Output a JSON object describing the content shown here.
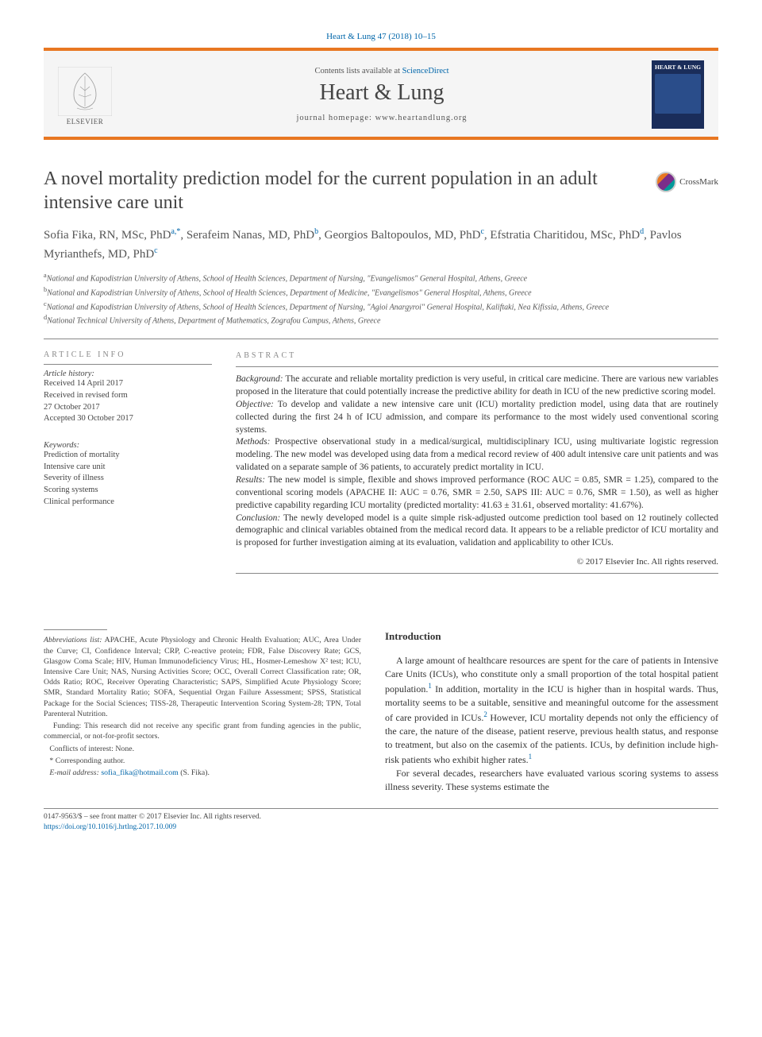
{
  "citation": "Heart & Lung 47 (2018) 10–15",
  "header": {
    "contents_text": "Contents lists available at ",
    "contents_link": "ScienceDirect",
    "journal_name": "Heart & Lung",
    "homepage_label": "journal homepage: ",
    "homepage_url": "www.heartandlung.org",
    "elsevier_label": "ELSEVIER",
    "cover_title": "HEART & LUNG"
  },
  "colors": {
    "accent_orange": "#e87722",
    "link_blue": "#0066aa",
    "cover_bg": "#1a2d5a",
    "rule_gray": "#888888",
    "header_bg": "#f5f5f5",
    "text_body": "#333333",
    "text_muted": "#555555"
  },
  "article": {
    "title": "A novel mortality prediction model for the current population in an adult intensive care unit",
    "crossmark": "CrossMark",
    "authors_html": "Sofia Fika, RN, MSc, PhD",
    "authors": [
      {
        "name": "Sofia Fika, RN, MSc, PhD",
        "marks": "a,*"
      },
      {
        "name": "Serafeim Nanas, MD, PhD",
        "marks": "b"
      },
      {
        "name": "Georgios Baltopoulos, MD, PhD",
        "marks": "c"
      },
      {
        "name": "Efstratia Charitidou, MSc, PhD",
        "marks": "d"
      },
      {
        "name": "Pavlos Myrianthefs, MD, PhD",
        "marks": "c"
      }
    ],
    "affiliations": [
      {
        "mark": "a",
        "text": "National and Kapodistrian University of Athens, School of Health Sciences, Department of Nursing, \"Evangelismos\" General Hospital, Athens, Greece"
      },
      {
        "mark": "b",
        "text": "National and Kapodistrian University of Athens, School of Health Sciences, Department of Medicine, \"Evangelismos\" General Hospital, Athens, Greece"
      },
      {
        "mark": "c",
        "text": "National and Kapodistrian University of Athens, School of Health Sciences, Department of Nursing, \"Agioi Anargyroi\" General Hospital, Kaliftaki, Nea Kifissia, Athens, Greece"
      },
      {
        "mark": "d",
        "text": "National Technical University of Athens, Department of Mathematics, Zografou Campus, Athens, Greece"
      }
    ]
  },
  "article_info": {
    "label": "ARTICLE INFO",
    "history_label": "Article history:",
    "history": [
      "Received 14 April 2017",
      "Received in revised form",
      "27 October 2017",
      "Accepted 30 October 2017"
    ],
    "keywords_label": "Keywords:",
    "keywords": [
      "Prediction of mortality",
      "Intensive care unit",
      "Severity of illness",
      "Scoring systems",
      "Clinical performance"
    ]
  },
  "abstract": {
    "label": "ABSTRACT",
    "paragraphs": [
      {
        "lead": "Background:",
        "text": " The accurate and reliable mortality prediction is very useful, in critical care medicine. There are various new variables proposed in the literature that could potentially increase the predictive ability for death in ICU of the new predictive scoring model."
      },
      {
        "lead": "Objective:",
        "text": " To develop and validate a new intensive care unit (ICU) mortality prediction model, using data that are routinely collected during the first 24 h of ICU admission, and compare its performance to the most widely used conventional scoring systems."
      },
      {
        "lead": "Methods:",
        "text": " Prospective observational study in a medical/surgical, multidisciplinary ICU, using multivariate logistic regression modeling. The new model was developed using data from a medical record review of 400 adult intensive care unit patients and was validated on a separate sample of 36 patients, to accurately predict mortality in ICU."
      },
      {
        "lead": "Results:",
        "text": " The new model is simple, flexible and shows improved performance (ROC AUC = 0.85, SMR = 1.25), compared to the conventional scoring models (APACHE II: AUC = 0.76, SMR = 2.50, SAPS III: AUC = 0.76, SMR = 1.50), as well as higher predictive capability regarding ICU mortality (predicted mortality: 41.63 ± 31.61, observed mortality: 41.67%)."
      },
      {
        "lead": "Conclusion:",
        "text": " The newly developed model is a quite simple risk-adjusted outcome prediction tool based on 12 routinely collected demographic and clinical variables obtained from the medical record data. It appears to be a reliable predictor of ICU mortality and is proposed for further investigation aiming at its evaluation, validation and applicability to other ICUs."
      }
    ],
    "copyright": "© 2017 Elsevier Inc. All rights reserved."
  },
  "footnotes": {
    "abbrev_label": "Abbreviations list:",
    "abbrev_text": " APACHE, Acute Physiology and Chronic Health Evaluation; AUC, Area Under the Curve; CI, Confidence Interval; CRP, C-reactive protein; FDR, False Discovery Rate; GCS, Glasgow Coma Scale; HIV, Human Immunodeficiency Virus; HL, Hosmer-Lemeshow X² test; ICU, Intensive Care Unit; NAS, Nursing Activities Score; OCC, Overall Correct Classification rate; OR, Odds Ratio; ROC, Receiver Operating Characteristic; SAPS, Simplified Acute Physiology Score; SMR, Standard Mortality Ratio; SOFA, Sequential Organ Failure Assessment; SPSS, Statistical Package for the Social Sciences; TISS-28, Therapeutic Intervention Scoring System-28; TPN, Total Parenteral Nutrition.",
    "funding_label": "Funding:",
    "funding_text": " This research did not receive any specific grant from funding agencies in the public, commercial, or not-for-profit sectors.",
    "conflicts": "Conflicts of interest: None.",
    "corresponding": "* Corresponding author.",
    "email_label": "E-mail address: ",
    "email": "sofia_fika@hotmail.com",
    "email_paren": " (S. Fika)."
  },
  "intro": {
    "heading": "Introduction",
    "p1": "A large amount of healthcare resources are spent for the care of patients in Intensive Care Units (ICUs), who constitute only a small proportion of the total hospital patient population.",
    "p1_cont": " In addition, mortality in the ICU is higher than in hospital wards. Thus, mortality seems to be a suitable, sensitive and meaningful outcome for the assessment of care provided in ICUs.",
    "p1_end": " However, ICU mortality depends not only the efficiency of the care, the nature of the disease, patient reserve, previous health status, and response to treatment, but also on the casemix of the patients. ICUs, by definition include high-risk patients who exhibit higher rates.",
    "p2": "For several decades, researchers have evaluated various scoring systems to assess illness severity. These systems estimate the",
    "ref1": "1",
    "ref2": "2",
    "ref3": "1"
  },
  "footer": {
    "issn": "0147-9563/$ – see front matter © 2017 Elsevier Inc. All rights reserved.",
    "doi": "https://doi.org/10.1016/j.hrtlng.2017.10.009"
  }
}
